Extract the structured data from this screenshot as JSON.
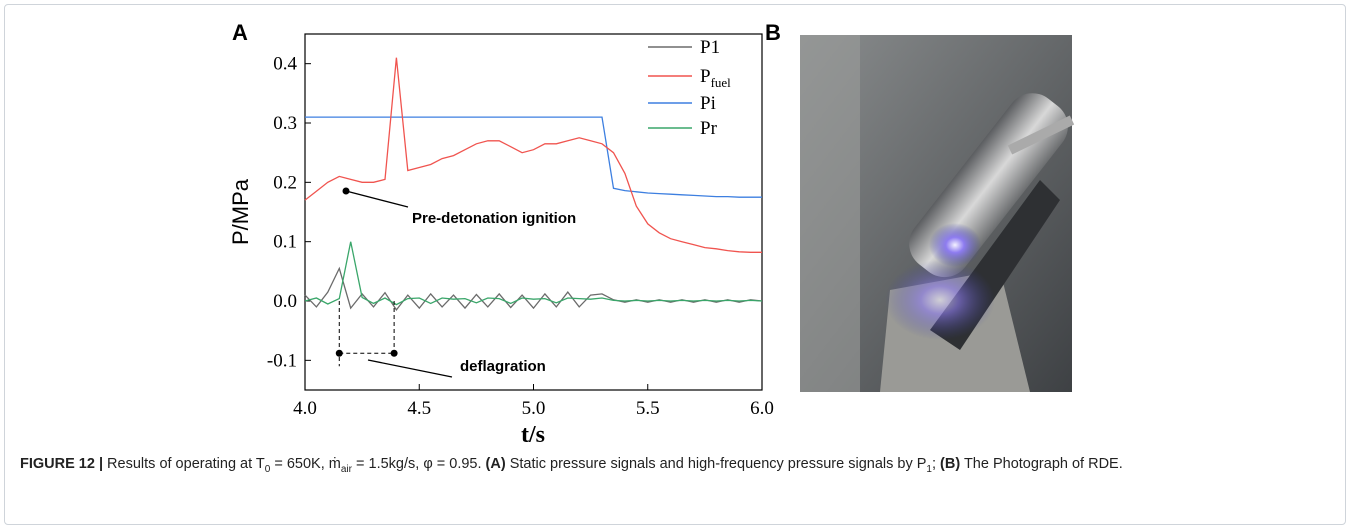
{
  "panel_a_label": "A",
  "panel_b_label": "B",
  "chart_data": {
    "type": "line",
    "ylabel": "P/MPa",
    "xlabel": "t/s",
    "x": [
      4.0,
      4.05,
      4.1,
      4.15,
      4.2,
      4.25,
      4.3,
      4.35,
      4.4,
      4.45,
      4.5,
      4.55,
      4.6,
      4.65,
      4.7,
      4.75,
      4.8,
      4.85,
      4.9,
      4.95,
      5.0,
      5.05,
      5.1,
      5.15,
      5.2,
      5.25,
      5.3,
      5.35,
      5.4,
      5.45,
      5.5,
      5.55,
      5.6,
      5.65,
      5.7,
      5.75,
      5.8,
      5.85,
      5.9,
      5.95,
      6.0
    ],
    "series": [
      {
        "name": "P1",
        "color": "#6b6b6b",
        "values": [
          0.01,
          -0.01,
          0.015,
          0.055,
          -0.012,
          0.012,
          -0.01,
          0.014,
          -0.015,
          0.01,
          -0.012,
          0.012,
          -0.01,
          0.01,
          -0.012,
          0.011,
          -0.01,
          0.012,
          -0.011,
          0.01,
          -0.012,
          0.012,
          -0.01,
          0.015,
          -0.01,
          0.01,
          0.012,
          0.002,
          -0.002,
          0.002,
          -0.002,
          0.002,
          -0.002,
          0.002,
          -0.002,
          0.002,
          -0.002,
          0.002,
          -0.002,
          0.002,
          0.0
        ]
      },
      {
        "name": "P",
        "subscript": "fuel",
        "color": "#f0544f",
        "values": [
          0.17,
          0.185,
          0.2,
          0.21,
          0.205,
          0.2,
          0.2,
          0.205,
          0.41,
          0.22,
          0.225,
          0.23,
          0.24,
          0.245,
          0.255,
          0.265,
          0.27,
          0.27,
          0.26,
          0.25,
          0.255,
          0.265,
          0.265,
          0.27,
          0.275,
          0.27,
          0.265,
          0.25,
          0.215,
          0.16,
          0.13,
          0.115,
          0.105,
          0.1,
          0.095,
          0.09,
          0.088,
          0.085,
          0.083,
          0.082,
          0.082
        ]
      },
      {
        "name": "Pi",
        "color": "#3d7fe0",
        "values": [
          0.31,
          0.31,
          0.31,
          0.31,
          0.31,
          0.31,
          0.31,
          0.31,
          0.31,
          0.31,
          0.31,
          0.31,
          0.31,
          0.31,
          0.31,
          0.31,
          0.31,
          0.31,
          0.31,
          0.31,
          0.31,
          0.31,
          0.31,
          0.31,
          0.31,
          0.31,
          0.31,
          0.19,
          0.186,
          0.184,
          0.182,
          0.181,
          0.18,
          0.179,
          0.178,
          0.177,
          0.176,
          0.176,
          0.175,
          0.175,
          0.175
        ]
      },
      {
        "name": "Pr",
        "color": "#3aa66a",
        "values": [
          0.0,
          0.005,
          -0.005,
          0.004,
          0.1,
          0.006,
          -0.004,
          0.005,
          -0.006,
          0.004,
          0.005,
          -0.004,
          0.005,
          0.003,
          0.004,
          -0.003,
          0.005,
          0.004,
          -0.004,
          0.005,
          0.003,
          0.004,
          -0.003,
          0.005,
          0.004,
          0.003,
          0.005,
          0.001,
          0.0,
          0.001,
          0.0,
          0.001,
          0.0,
          0.001,
          0.0,
          0.001,
          0.0,
          0.001,
          0.0,
          0.001,
          0.0
        ]
      }
    ],
    "xlim": [
      4.0,
      6.0
    ],
    "xticks": [
      {
        "value": 4.0,
        "label": "4.0"
      },
      4.5,
      {
        "value": 5.0,
        "label": "5.0"
      },
      5.5,
      {
        "value": 6.0,
        "label": "6.0"
      }
    ],
    "ylim": [
      -0.15,
      0.45
    ],
    "yticks": [
      -0.1,
      {
        "value": 0.0,
        "label": "0.0"
      },
      0.1,
      0.2,
      0.3,
      0.4
    ],
    "annotations": [
      "Pre-detonation ignition",
      "deflagration"
    ]
  },
  "caption": {
    "label": "FIGURE 12 |",
    "parts": [
      {
        "text": " Results of operating at T"
      },
      {
        "text": "0",
        "sub": true
      },
      {
        "text": " = 650K, ṁ"
      },
      {
        "text": "air",
        "sub": true
      },
      {
        "text": " = 1.5kg/s, φ = 0.95. "
      },
      {
        "text": "(A)",
        "bold": true
      },
      {
        "text": " Static pressure signals and high-frequency pressure signals by P"
      },
      {
        "text": "1",
        "sub": true
      },
      {
        "text": "; "
      },
      {
        "text": "(B)",
        "bold": true
      },
      {
        "text": " The Photograph of RDE."
      }
    ]
  }
}
